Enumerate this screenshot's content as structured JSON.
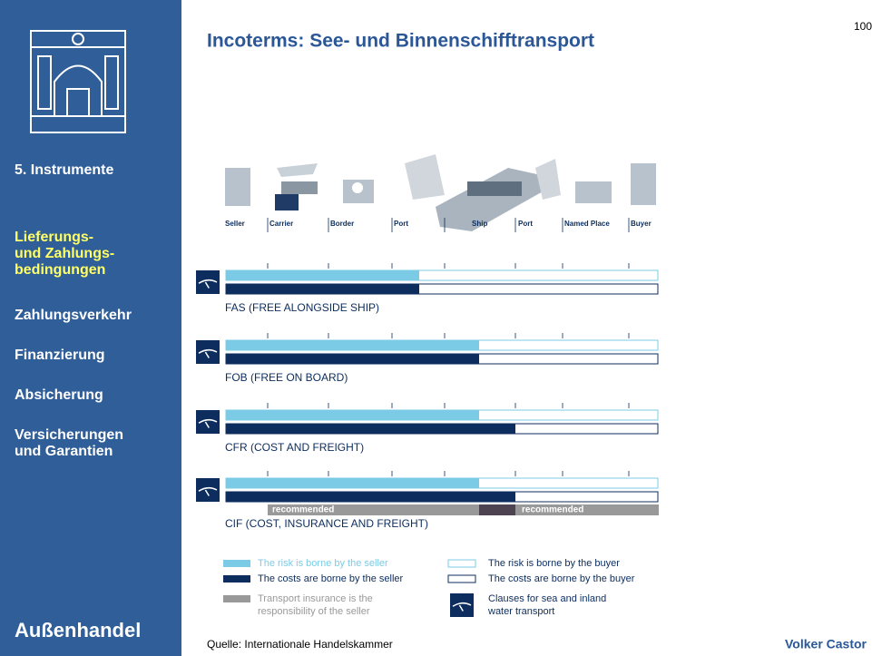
{
  "page_number": "100",
  "title": "Incoterms: See- und Binnenschifftransport",
  "sidebar": {
    "menu": [
      {
        "lines": [
          "5. Instrumente"
        ]
      },
      {
        "lines": [
          "Lieferungs-",
          "und Zahlungs-",
          "bedingungen"
        ],
        "active": true
      },
      {
        "lines": [
          "Zahlungsverkehr"
        ]
      },
      {
        "lines": [
          "Finanzierung"
        ]
      },
      {
        "lines": [
          "Absicherung"
        ]
      },
      {
        "lines": [
          "Versicherungen",
          "und Garantien"
        ]
      }
    ],
    "footer": "Außenhandel"
  },
  "stations": [
    "Seller",
    "Carrier",
    "Border",
    "Port",
    "Ship",
    "Port",
    "Named Place",
    "Buyer"
  ],
  "clauses": [
    {
      "label": "FAS (FREE ALONGSIDE SHIP)"
    },
    {
      "label": "FOB (FREE ON BOARD)"
    },
    {
      "label": "CFR (COST AND FREIGHT)"
    },
    {
      "label": "CIF (COST, INSURANCE AND FREIGHT)"
    }
  ],
  "recommended": [
    "recommended",
    "recommended"
  ],
  "legend": [
    {
      "lines": [
        "The risk is borne by the seller"
      ]
    },
    {
      "lines": [
        "The costs are borne by the seller"
      ]
    },
    {
      "lines": [
        "Transport insurance is the",
        "responsibility of the seller"
      ]
    },
    {
      "lines": [
        "The risk is borne by the buyer"
      ]
    },
    {
      "lines": [
        "The costs are borne by the buyer"
      ]
    },
    {
      "lines": [
        "Clauses for sea and inland",
        "water transport"
      ]
    }
  ],
  "source": "Quelle: Internationale Handelskammer",
  "author": "Volker Castor"
}
